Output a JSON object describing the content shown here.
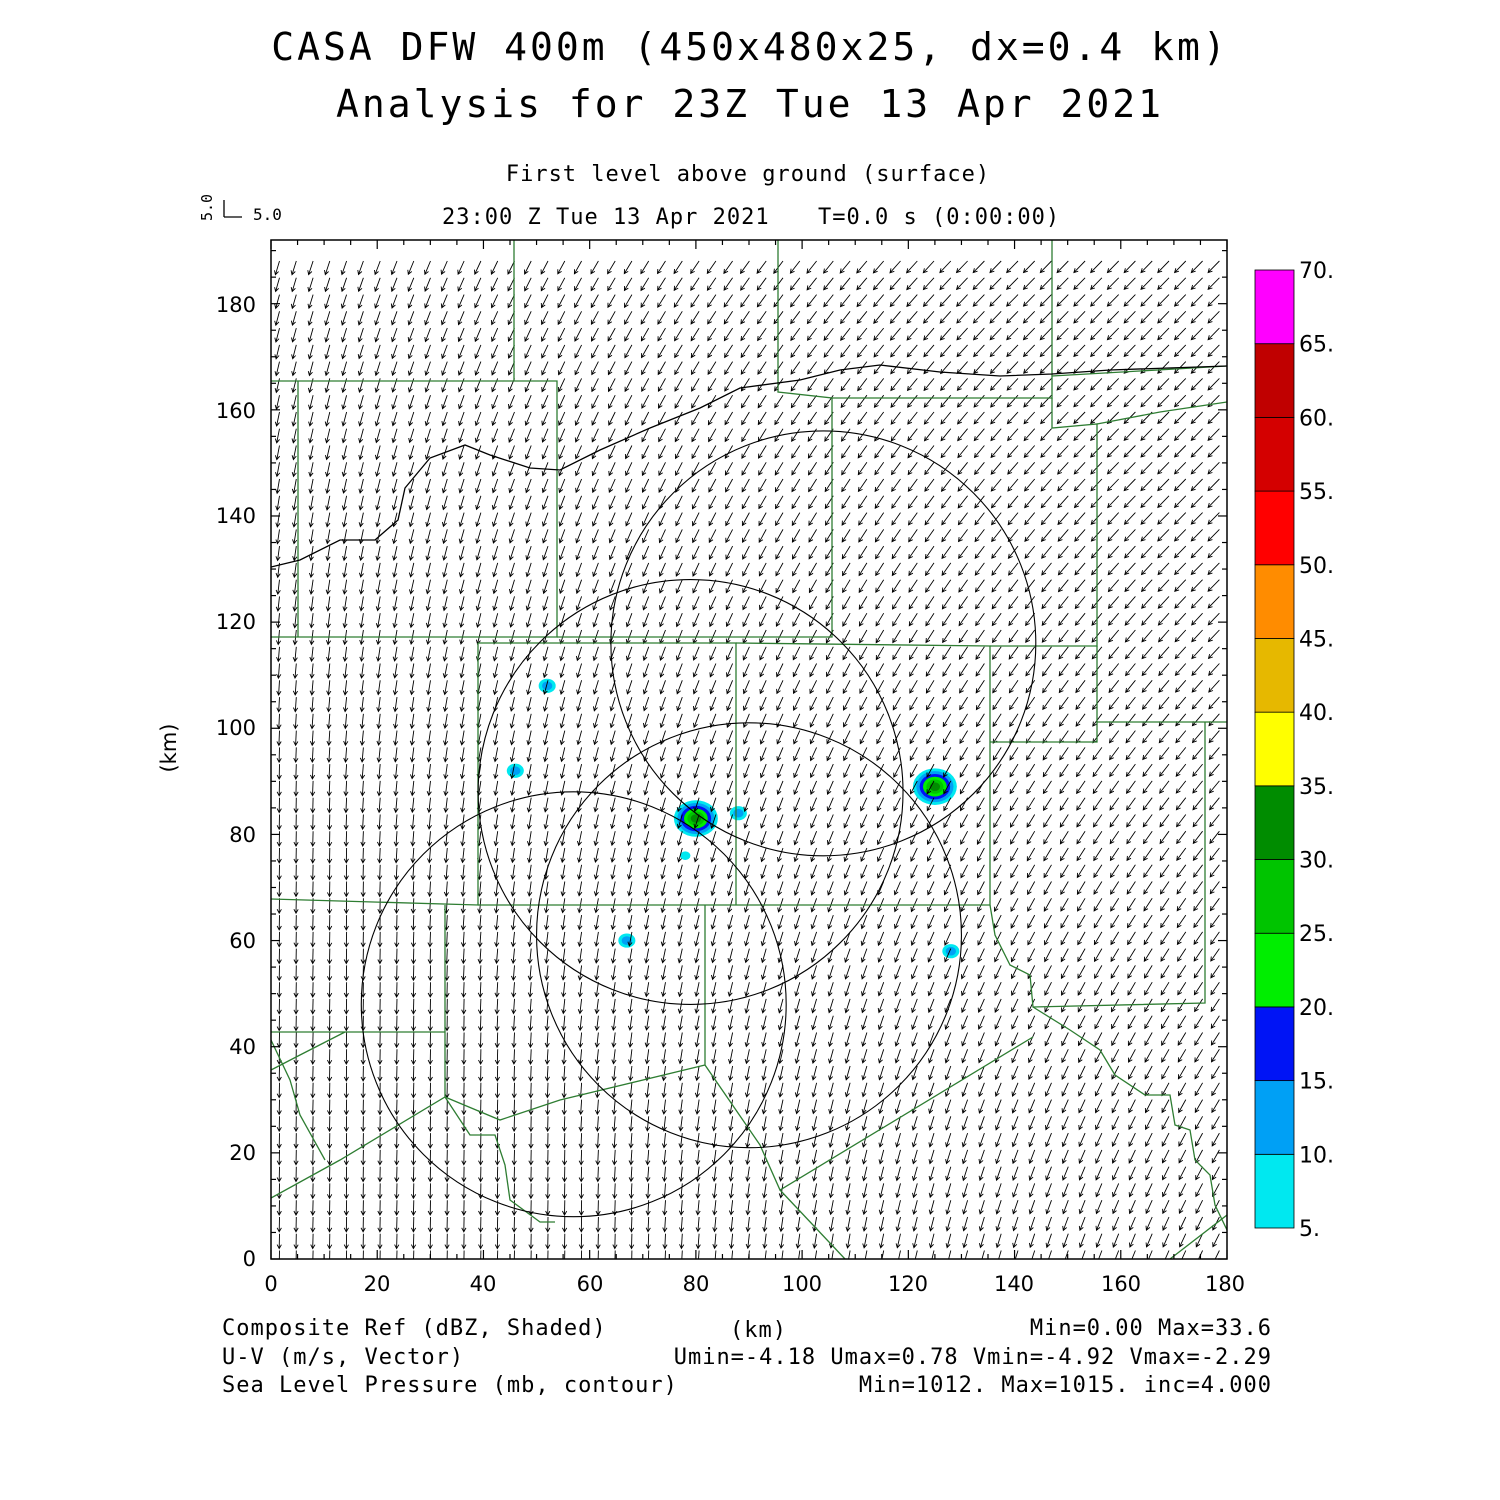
{
  "header": {
    "title_line1": "CASA DFW 400m (450x480x25, dx=0.4 km)",
    "title_line2": "Analysis for 23Z Tue 13 Apr 2021",
    "level": "First level above ground (surface)",
    "valid_time": "23:00 Z Tue 13 Apr 2021",
    "forecast_time": "T=0.0 s (0:00:00)",
    "vector_scale_v": "5.0",
    "vector_scale_u": "5.0"
  },
  "axes": {
    "x_label": "(km)",
    "y_label": "(km)",
    "x_ticks": [
      "0",
      "20",
      "40",
      "60",
      "80",
      "100",
      "120",
      "140",
      "160",
      "180"
    ],
    "y_ticks": [
      "0",
      "20",
      "40",
      "60",
      "80",
      "100",
      "120",
      "140",
      "160",
      "180"
    ],
    "x_range": [
      0,
      180
    ],
    "y_range": [
      0,
      192
    ]
  },
  "colorbar": {
    "labels": [
      "5.",
      "10.",
      "15.",
      "20.",
      "25.",
      "30.",
      "35.",
      "40.",
      "45.",
      "50.",
      "55.",
      "60.",
      "65.",
      "70."
    ],
    "colors": [
      "#00e8f0",
      "#00a0f5",
      "#0014f5",
      "#00ee00",
      "#00c400",
      "#008c00",
      "#ffff00",
      "#e6b800",
      "#ff8c00",
      "#ff0000",
      "#d40000",
      "#c00000",
      "#ff00ff"
    ]
  },
  "footer": {
    "field1_name": "Composite Ref (dBZ, Shaded)",
    "field1_stats": "Min=0.00 Max=33.6",
    "field2_name": "U-V (m/s, Vector)",
    "field2_stats": "Umin=-4.18 Umax=0.78 Vmin=-4.92 Vmax=-2.29",
    "field3_name": "Sea Level Pressure (mb, contour)",
    "field3_stats": "Min=1012. Max=1015. inc=4.000",
    "x_unit": "(km)"
  },
  "map_data": {
    "radar_range_rings_km": [
      {
        "cx": 104,
        "cy": 116,
        "r": 40
      },
      {
        "cx": 90,
        "cy": 61,
        "r": 40
      },
      {
        "cx": 57,
        "cy": 48,
        "r": 40
      },
      {
        "cx": 79,
        "cy": 88,
        "r": 40
      }
    ],
    "reflectivity_cells_km": [
      {
        "x": 52,
        "y": 108,
        "dbz": 12
      },
      {
        "x": 46,
        "y": 92,
        "dbz": 14
      },
      {
        "x": 80,
        "y": 83,
        "dbz": 30
      },
      {
        "x": 88,
        "y": 84,
        "dbz": 14
      },
      {
        "x": 125,
        "y": 89,
        "dbz": 33.6
      },
      {
        "x": 78,
        "y": 76,
        "dbz": 8
      },
      {
        "x": 67,
        "y": 60,
        "dbz": 10
      },
      {
        "x": 128,
        "y": 58,
        "dbz": 12
      }
    ]
  }
}
